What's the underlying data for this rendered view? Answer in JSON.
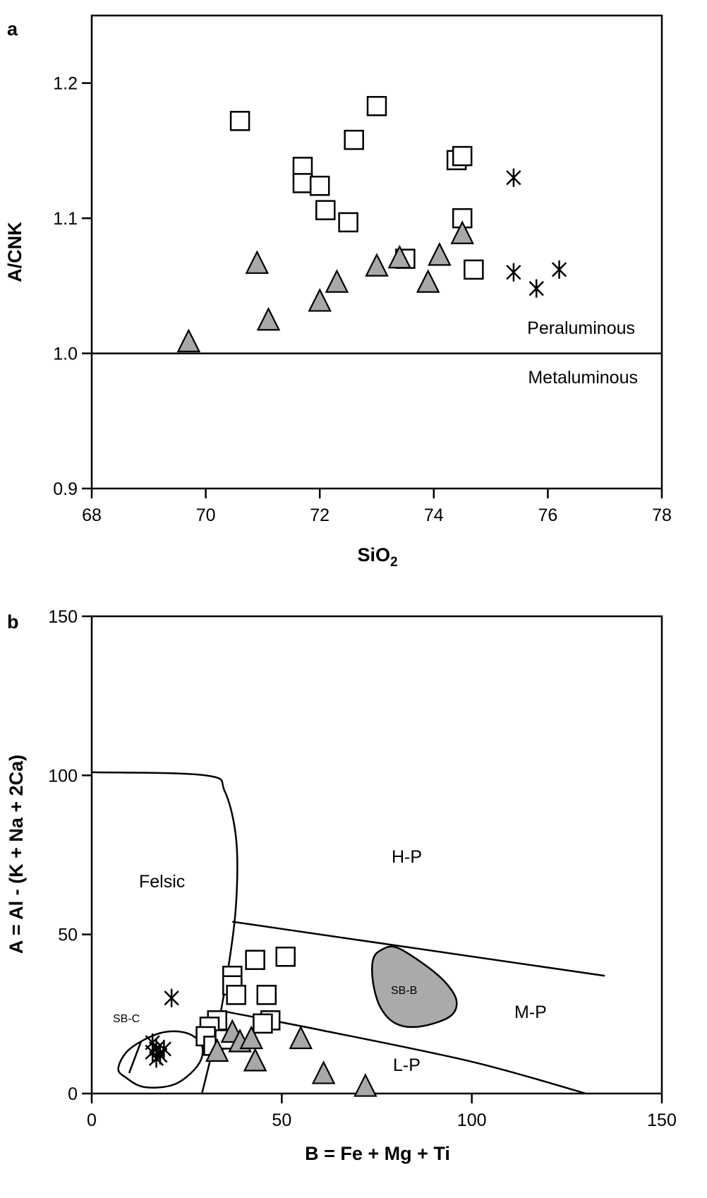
{
  "chart_data": [
    {
      "panel_label": "a",
      "type": "scatter",
      "xlabel": "SiO",
      "xlabel_subscript": "2",
      "ylabel": "A/CNK",
      "xlim": [
        68,
        78
      ],
      "ylim": [
        0.9,
        1.25
      ],
      "xticks": [
        "68",
        "70",
        "72",
        "74",
        "76",
        "78"
      ],
      "yticks": [
        "0.9",
        "1.0",
        "1.1",
        "1.2"
      ],
      "reference_line": {
        "y": 1.0
      },
      "region_labels": [
        "Peraluminous",
        "Metaluminous"
      ],
      "series": [
        {
          "marker": "open-square",
          "points": [
            [
              70.6,
              1.172
            ],
            [
              71.7,
              1.138
            ],
            [
              71.7,
              1.126
            ],
            [
              72.0,
              1.124
            ],
            [
              72.1,
              1.106
            ],
            [
              72.5,
              1.097
            ],
            [
              72.6,
              1.158
            ],
            [
              73.0,
              1.183
            ],
            [
              73.5,
              1.07
            ],
            [
              74.4,
              1.143
            ],
            [
              74.5,
              1.146
            ],
            [
              74.5,
              1.1
            ],
            [
              74.7,
              1.062
            ]
          ]
        },
        {
          "marker": "grey-triangle",
          "points": [
            [
              69.7,
              1.008
            ],
            [
              70.9,
              1.066
            ],
            [
              71.1,
              1.024
            ],
            [
              72.0,
              1.038
            ],
            [
              72.3,
              1.052
            ],
            [
              73.0,
              1.064
            ],
            [
              73.4,
              1.07
            ],
            [
              73.9,
              1.052
            ],
            [
              74.1,
              1.072
            ],
            [
              74.5,
              1.088
            ]
          ]
        },
        {
          "marker": "asterisk",
          "points": [
            [
              75.4,
              1.13
            ],
            [
              75.4,
              1.06
            ],
            [
              75.8,
              1.048
            ],
            [
              76.2,
              1.062
            ]
          ]
        }
      ]
    },
    {
      "panel_label": "b",
      "type": "scatter",
      "xlabel": "B = Fe + Mg + Ti",
      "ylabel": "A = Al - (K + Na + 2Ca)",
      "xlim": [
        0,
        150
      ],
      "ylim": [
        0,
        150
      ],
      "xticks": [
        "0",
        "50",
        "100",
        "150"
      ],
      "yticks": [
        "0",
        "50",
        "100",
        "150"
      ],
      "region_labels": [
        "Felsic",
        "H-P",
        "M-P",
        "L-P",
        "SB-B",
        "SB-C"
      ],
      "boundaries": {
        "felsic": [
          [
            0,
            101
          ],
          [
            30,
            100
          ],
          [
            35,
            95
          ],
          [
            38,
            80
          ],
          [
            38,
            60
          ],
          [
            36,
            40
          ],
          [
            33,
            20
          ],
          [
            29,
            0
          ]
        ],
        "hp_mp": [
          [
            37,
            54
          ],
          [
            135,
            37
          ]
        ],
        "lp_upper": [
          [
            34,
            26
          ],
          [
            60,
            20
          ],
          [
            100,
            10
          ],
          [
            130,
            0
          ]
        ],
        "sb_b": [
          [
            76,
            45
          ],
          [
            80,
            46
          ],
          [
            87,
            41
          ],
          [
            93,
            35
          ],
          [
            96,
            29
          ],
          [
            94,
            24
          ],
          [
            86,
            21
          ],
          [
            80,
            22
          ],
          [
            76,
            27
          ],
          [
            74,
            35
          ],
          [
            74,
            42
          ]
        ],
        "sb_c": [
          [
            9,
            5
          ],
          [
            14,
            2
          ],
          [
            22,
            3
          ],
          [
            28,
            9
          ],
          [
            29,
            15
          ],
          [
            25,
            19
          ],
          [
            18,
            19
          ],
          [
            10,
            14
          ],
          [
            7,
            8
          ]
        ]
      },
      "series": [
        {
          "marker": "open-square",
          "points": [
            [
              37,
              37
            ],
            [
              37,
              34
            ],
            [
              38,
              31
            ],
            [
              43,
              42
            ],
            [
              46,
              31
            ],
            [
              51,
              43
            ],
            [
              47,
              23
            ],
            [
              45,
              22
            ],
            [
              33,
              23
            ],
            [
              31,
              21
            ],
            [
              30,
              18
            ],
            [
              32,
              15
            ],
            [
              35,
              17
            ]
          ]
        },
        {
          "marker": "grey-triangle",
          "points": [
            [
              33,
              13
            ],
            [
              37,
              19
            ],
            [
              39,
              16
            ],
            [
              42,
              17
            ],
            [
              43,
              10
            ],
            [
              55,
              17
            ],
            [
              61,
              6
            ],
            [
              72,
              2
            ]
          ]
        },
        {
          "marker": "asterisk",
          "points": [
            [
              21,
              30
            ],
            [
              16,
              16
            ],
            [
              17,
              14
            ],
            [
              18,
              12
            ],
            [
              19,
              14
            ],
            [
              17,
              11
            ],
            [
              16,
              13
            ]
          ]
        }
      ]
    }
  ]
}
